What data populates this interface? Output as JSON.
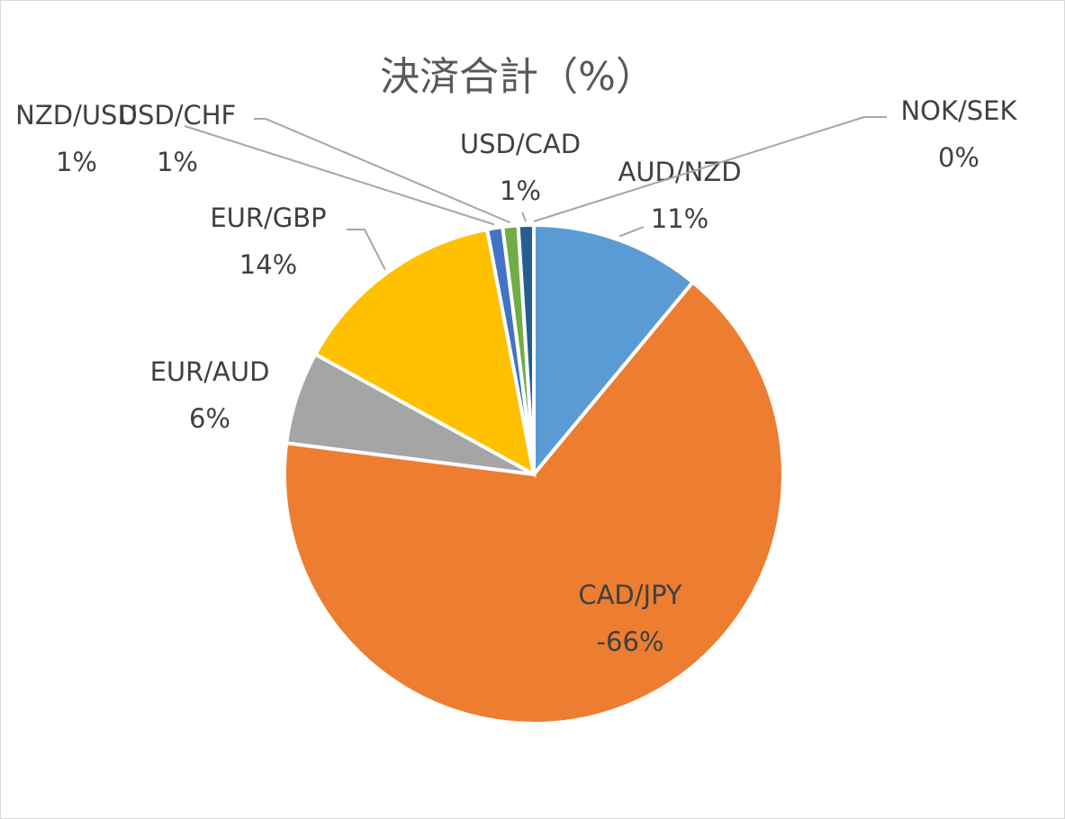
{
  "chart_data": {
    "type": "pie",
    "title": "決済合計（%）",
    "categories": [
      "AUD/NZD",
      "CAD/JPY",
      "EUR/AUD",
      "EUR/GBP",
      "NZD/USD",
      "USD/CHF",
      "USD/CAD",
      "NOK/SEK"
    ],
    "values": [
      11,
      -66,
      6,
      14,
      1,
      1,
      1,
      0
    ],
    "value_labels": [
      "11%",
      "-66%",
      "6%",
      "14%",
      "1%",
      "1%",
      "1%",
      "0%"
    ],
    "colors": [
      "#5b9bd5",
      "#ed7d31",
      "#a5a5a5",
      "#ffc000",
      "#4472c4",
      "#70ad47",
      "#255e91",
      "#9e480e"
    ]
  }
}
